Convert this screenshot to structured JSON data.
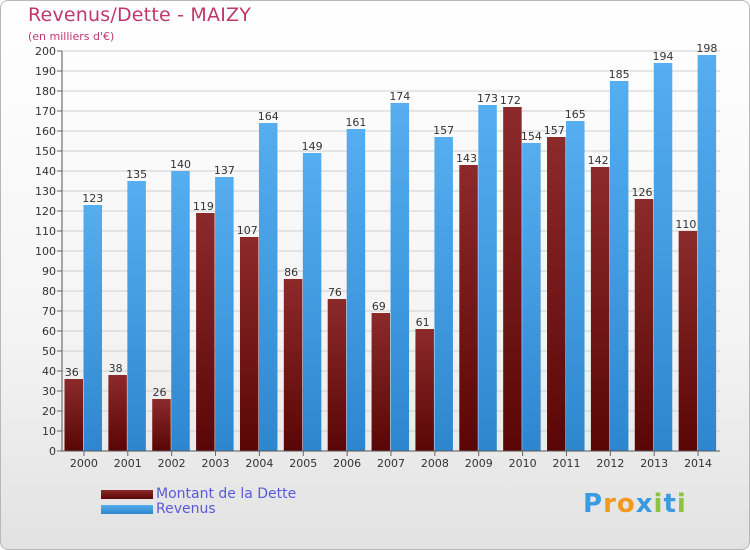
{
  "title": "Revenus/Dette - MAIZY",
  "subtitle": "(en milliers d'€)",
  "legend": {
    "debt_label": "Montant de la Dette",
    "revenue_label": "Revenus"
  },
  "logo": {
    "text": "Proxiti",
    "letters": [
      "P",
      "r",
      "o",
      "x",
      "i",
      "t",
      "i"
    ],
    "colors": [
      "#3a9be0",
      "#f29a1f",
      "#f29a1f",
      "#3a9be0",
      "#8cc43f",
      "#3a9be0",
      "#8cc43f"
    ]
  },
  "colors": {
    "debt": "#7a1616",
    "revenue": "#4aa3e8",
    "axis_text": "#333333"
  },
  "chart_data": {
    "type": "bar",
    "title": "Revenus/Dette - MAIZY",
    "subtitle": "(en milliers d'€)",
    "categories": [
      "2000",
      "2001",
      "2002",
      "2003",
      "2004",
      "2005",
      "2006",
      "2007",
      "2008",
      "2009",
      "2010",
      "2011",
      "2012",
      "2013",
      "2014"
    ],
    "series": [
      {
        "name": "Montant de la Dette",
        "values": [
          36,
          38,
          26,
          119,
          107,
          86,
          76,
          69,
          61,
          143,
          172,
          157,
          142,
          126,
          110
        ]
      },
      {
        "name": "Revenus",
        "values": [
          123,
          135,
          140,
          137,
          164,
          149,
          161,
          174,
          157,
          173,
          154,
          165,
          185,
          194,
          198
        ]
      }
    ],
    "ylim": [
      0,
      200
    ],
    "ytick_step": 10,
    "grid": true,
    "legend_position": "bottom-left",
    "data_labels": true
  }
}
